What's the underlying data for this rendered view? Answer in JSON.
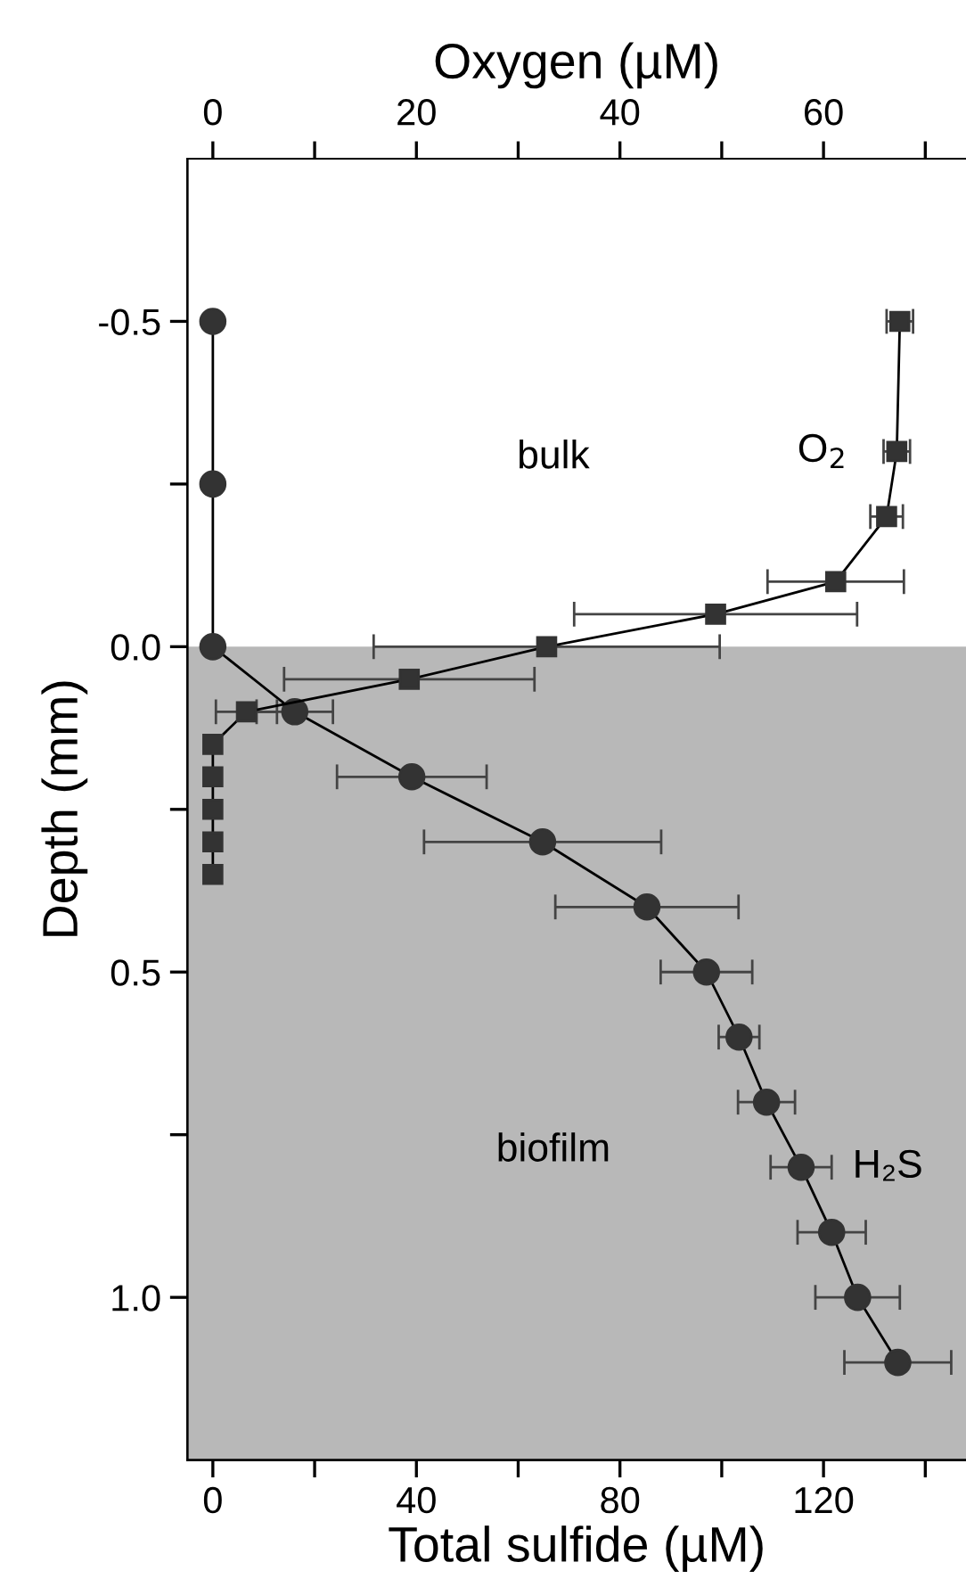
{
  "chart_data": {
    "type": "line",
    "xlabel": "Total sulfide (µM)",
    "x2label": "Oxygen (µM)",
    "ylabel": "Depth (mm)",
    "xlim": [
      -5,
      148
    ],
    "xticks": [
      0,
      {
        "value": 20,
        "label": null
      },
      40,
      {
        "value": 60,
        "label": null
      },
      80,
      {
        "value": 100,
        "label": null
      },
      120,
      {
        "value": 140,
        "label": null
      }
    ],
    "x2lim": [
      -2.5,
      74
    ],
    "x2ticks": [
      0,
      {
        "value": 10,
        "label": null
      },
      20,
      {
        "value": 30,
        "label": null
      },
      40,
      {
        "value": 50,
        "label": null
      },
      60,
      {
        "value": 70,
        "label": null
      }
    ],
    "ylim": [
      1.25,
      -0.75
    ],
    "yticks": [
      {
        "value": -0.5,
        "label": "-0.5"
      },
      {
        "value": -0.25,
        "label": null
      },
      {
        "value": 0,
        "label": "0.0"
      },
      {
        "value": 0.25,
        "label": null
      },
      0.5,
      {
        "value": 0.75,
        "label": null
      },
      {
        "value": 1,
        "label": "1.0"
      }
    ],
    "grid": false,
    "legend": false,
    "line_style": "solid",
    "annotations": [
      "bulk"
    ],
    "bands": [
      {
        "axis": "y",
        "from": 0,
        "to": 1.25,
        "label": "biofilm",
        "color": "#b8b8b8"
      }
    ],
    "series": [
      {
        "name": "H₂S",
        "marker": "circle",
        "color": "#333333",
        "x": [
          0,
          0,
          0,
          16.1,
          39.1,
          64.8,
          85.3,
          97,
          103.4,
          108.8,
          115.6,
          121.6,
          126.7,
          134.6
        ],
        "values": [
          -0.5,
          -0.25,
          0,
          0.1,
          0.2,
          0.3,
          0.4,
          0.5,
          0.6,
          0.7,
          0.8,
          0.9,
          1.0,
          1.1
        ],
        "xerrors": [
          null,
          null,
          null,
          7.5,
          14.7,
          23.3,
          18,
          9,
          4,
          5.6,
          6,
          6.7,
          8.3,
          10.5
        ]
      },
      {
        "name": "O$_{2}$",
        "marker": "square",
        "axis": "x2",
        "color": "#333333",
        "x": [
          67.5,
          67.2,
          66.2,
          61.2,
          49.4,
          32.8,
          19.3,
          3.3,
          0,
          0,
          0,
          0,
          0
        ],
        "values": [
          -0.5,
          -0.3,
          -0.2,
          -0.1,
          -0.05,
          0,
          0.05,
          0.1,
          0.15,
          0.2,
          0.25,
          0.3,
          0.35
        ],
        "xerrors": [
          1.3,
          1.3,
          1.6,
          6.7,
          13.9,
          17,
          12.3,
          3,
          null,
          null,
          null,
          null,
          null
        ]
      }
    ]
  }
}
